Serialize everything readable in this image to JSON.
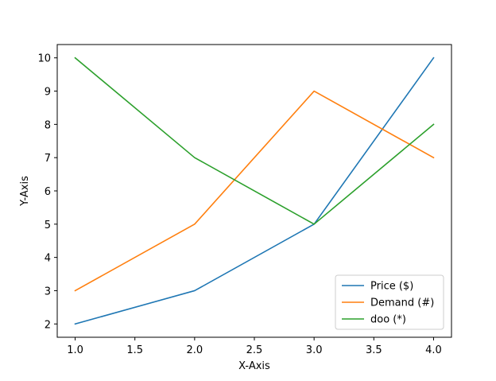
{
  "chart_data": {
    "type": "line",
    "title": "",
    "xlabel": "X-Axis",
    "ylabel": "Y-Axis",
    "x": [
      1.0,
      2.0,
      3.0,
      4.0
    ],
    "xlim": [
      0.85,
      4.15
    ],
    "ylim": [
      1.6,
      10.4
    ],
    "xticks": [
      1.0,
      1.5,
      2.0,
      2.5,
      3.0,
      3.5,
      4.0
    ],
    "xtick_labels": [
      "1.0",
      "1.5",
      "2.0",
      "2.5",
      "3.0",
      "3.5",
      "4.0"
    ],
    "yticks": [
      2,
      3,
      4,
      5,
      6,
      7,
      8,
      9,
      10
    ],
    "ytick_labels": [
      "2",
      "3",
      "4",
      "5",
      "6",
      "7",
      "8",
      "9",
      "10"
    ],
    "grid": false,
    "legend_position": "bottom-right",
    "series": [
      {
        "name": "Price ($)",
        "color": "#1f77b4",
        "values": [
          2,
          3,
          5,
          10
        ]
      },
      {
        "name": "Demand (#)",
        "color": "#ff7f0e",
        "values": [
          3,
          5,
          9,
          7
        ]
      },
      {
        "name": "doo (*)",
        "color": "#2ca02c",
        "values": [
          10,
          7,
          5,
          8
        ]
      }
    ]
  }
}
